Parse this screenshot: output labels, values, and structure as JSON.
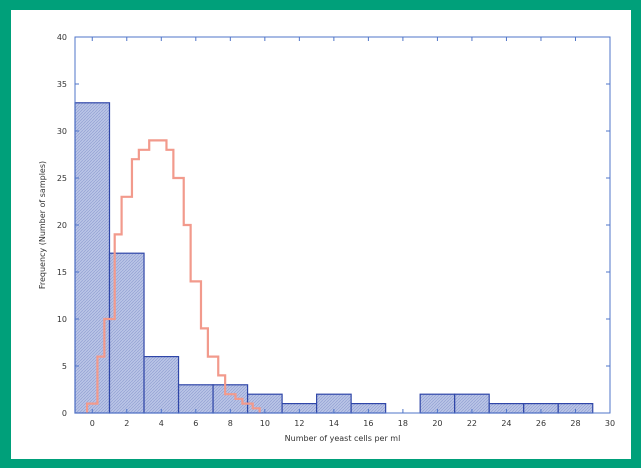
{
  "colors": {
    "background": "#00a07a",
    "panel": "#ffffff",
    "bar_fill": "#b9c4e6",
    "bar_stroke": "#2f46a8",
    "curve": "#f29a8c",
    "frame": "#4f74c8"
  },
  "chart_data": {
    "type": "bar",
    "xlabel": "Number of yeast cells per ml",
    "ylabel": "Frequency (Number of samples)",
    "xlim": [
      -1,
      30
    ],
    "ylim": [
      0,
      40
    ],
    "x_ticks": [
      0,
      2,
      4,
      6,
      8,
      10,
      12,
      14,
      16,
      18,
      20,
      22,
      24,
      26,
      28,
      30
    ],
    "y_ticks": [
      0,
      5,
      10,
      15,
      20,
      25,
      30,
      35,
      40
    ],
    "series": [
      {
        "kind": "histogram",
        "bin_edges": [
          -1,
          1,
          3,
          5,
          7,
          9,
          11,
          13,
          15,
          17,
          19,
          21,
          23,
          25,
          27,
          29
        ],
        "values": [
          33,
          17,
          6,
          3,
          3,
          2,
          1,
          2,
          1,
          0,
          2,
          2,
          1,
          1,
          1
        ]
      },
      {
        "kind": "step",
        "x": [
          -0.3,
          0.3,
          0.7,
          1.3,
          1.7,
          2.3,
          2.7,
          3.3,
          3.7,
          4.3,
          4.7,
          5.3,
          5.7,
          6.3,
          6.7,
          7.3,
          7.7,
          8.3,
          8.7,
          9.3,
          9.7
        ],
        "y": [
          1,
          6,
          10,
          19,
          23,
          27,
          28,
          29,
          29,
          28,
          25,
          20,
          14,
          9,
          6,
          4,
          2,
          1.5,
          1,
          0.5,
          0
        ]
      }
    ],
    "grid": false,
    "legend": "none"
  }
}
